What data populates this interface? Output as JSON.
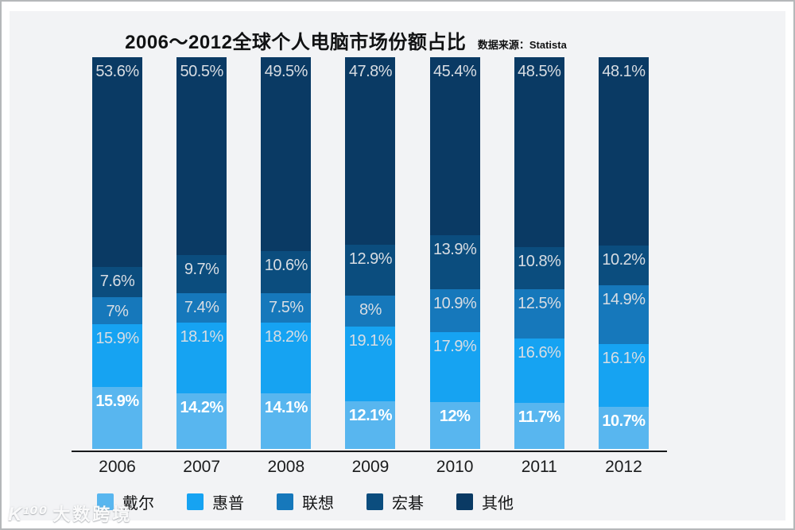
{
  "header": {
    "title": "2006～2012全球个人电脑市场份额占比",
    "source": "数据来源：Statista"
  },
  "chart_data": {
    "type": "bar",
    "stacked": true,
    "unit": "%",
    "title": "2006～2012全球个人电脑市场份额占比",
    "source_note": "数据来源：Statista",
    "categories": [
      "2006",
      "2007",
      "2008",
      "2009",
      "2010",
      "2011",
      "2012"
    ],
    "series": [
      {
        "name": "戴尔",
        "color": "#58b6ef",
        "emphasis_labels": true,
        "values": [
          15.9,
          14.2,
          14.1,
          12.1,
          12,
          11.7,
          10.7
        ]
      },
      {
        "name": "惠普",
        "color": "#16a3f2",
        "emphasis_labels": false,
        "values": [
          15.9,
          18.1,
          18.2,
          19.1,
          17.9,
          16.6,
          16.1
        ]
      },
      {
        "name": "联想",
        "color": "#1678bb",
        "emphasis_labels": false,
        "values": [
          7,
          7.4,
          7.5,
          8,
          10.9,
          12.5,
          14.9
        ]
      },
      {
        "name": "宏碁",
        "color": "#0b4d7e",
        "emphasis_labels": false,
        "values": [
          7.6,
          9.7,
          10.6,
          12.9,
          13.9,
          10.8,
          10.2
        ]
      },
      {
        "name": "其他",
        "color": "#0a3a64",
        "emphasis_labels": false,
        "values": [
          53.6,
          50.5,
          49.5,
          47.8,
          45.4,
          48.5,
          48.1
        ]
      }
    ],
    "stack_order_bottom_to_top": [
      "戴尔",
      "惠普",
      "联想",
      "宏碁",
      "其他"
    ],
    "value_labels": "inside-top-of-segment",
    "label_suffix": "%",
    "legend_position": "bottom",
    "grid": false,
    "y_axis_visible": false,
    "ylim": [
      0,
      100
    ]
  },
  "legend": {
    "items": [
      "戴尔",
      "惠普",
      "联想",
      "宏碁",
      "其他"
    ]
  },
  "watermark": {
    "logo": "K¹⁰⁰",
    "name": "大数跨境"
  }
}
